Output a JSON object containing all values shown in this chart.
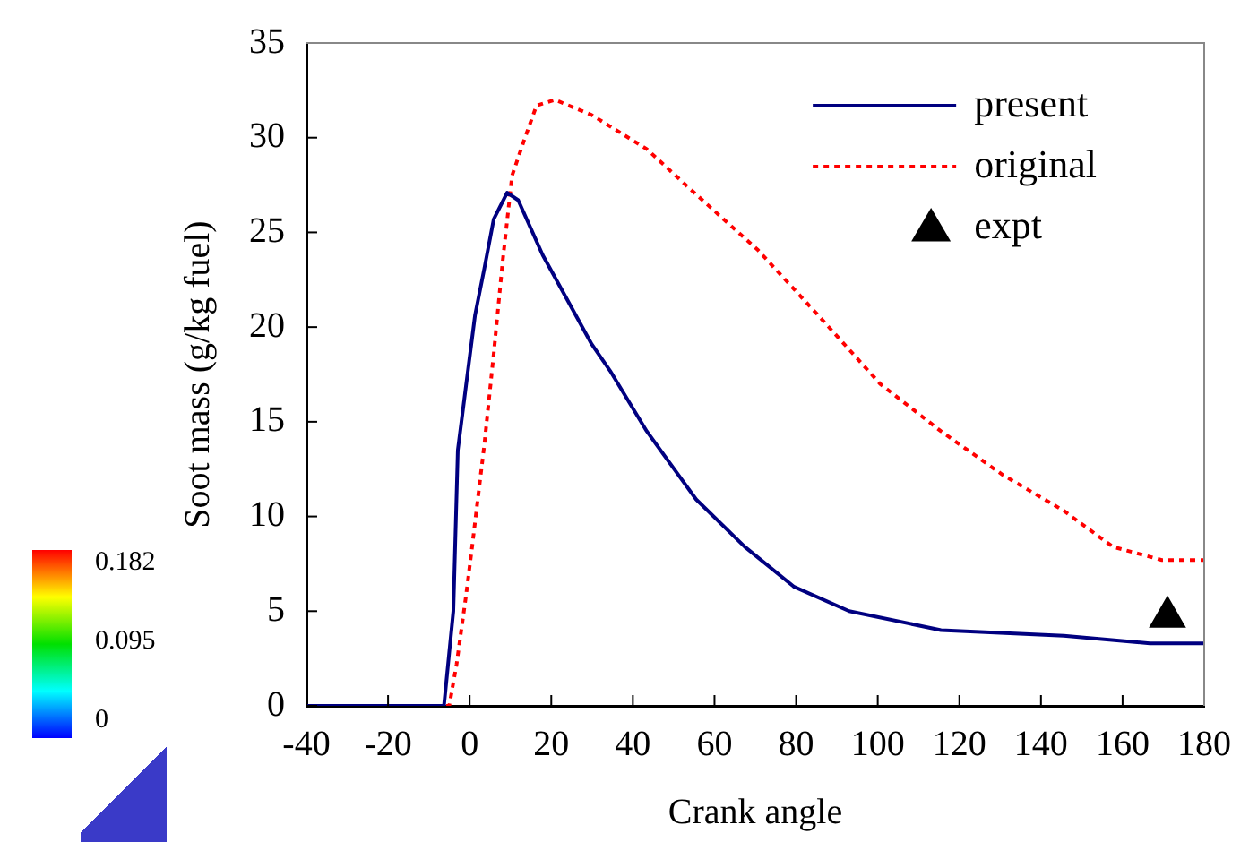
{
  "chart_data": {
    "type": "line",
    "xlabel": "Crank angle",
    "ylabel": "Soot mass (g/kg fuel)",
    "xlim": [
      -40,
      180
    ],
    "xticks": [
      -40,
      -20,
      0,
      20,
      40,
      60,
      80,
      100,
      120,
      140,
      160,
      180
    ],
    "ylim": [
      0,
      35
    ],
    "yticks": [
      0,
      5,
      10,
      15,
      20,
      25,
      30,
      35
    ],
    "grid": false,
    "legend": "top right",
    "marker": "none",
    "series": [
      {
        "name": "present",
        "color": "#000080",
        "line_style": "solid",
        "x": [
          -40,
          -6.3,
          -4,
          -2.9,
          -0.9,
          1.3,
          3.6,
          5.9,
          9.2,
          11.9,
          17.9,
          29.9,
          34.4,
          43.4,
          55.5,
          67.4,
          79.4,
          93,
          115.5,
          145.6,
          166.7,
          180
        ],
        "values": [
          0,
          0,
          5,
          13.5,
          16.9,
          20.6,
          23.1,
          25.7,
          27.1,
          26.7,
          23.8,
          19.1,
          17.7,
          14.5,
          10.9,
          8.4,
          6.3,
          5,
          4,
          3.7,
          3.3,
          3.3
        ]
      },
      {
        "name": "original",
        "color": "#ff0000",
        "line_style": "dotted",
        "x": [
          -40,
          -5,
          -3.2,
          -0.9,
          0.6,
          3.6,
          5.9,
          8.1,
          10.4,
          13.4,
          16.4,
          20.9,
          29.9,
          43.4,
          55.5,
          70.5,
          85.5,
          100.6,
          115.5,
          130.6,
          145.6,
          157.6,
          169.6,
          180
        ],
        "values": [
          0,
          0,
          2.2,
          5.8,
          8.4,
          13.8,
          18.6,
          23.5,
          28,
          29.9,
          31.7,
          32,
          31.2,
          29.4,
          27,
          24.1,
          20.6,
          17,
          14.5,
          12.2,
          10.3,
          8.4,
          7.7,
          7.7
        ]
      },
      {
        "name": "expt",
        "type": "scatter",
        "marker": "triangle",
        "color": "#000000",
        "x": [
          171
        ],
        "values": [
          4.7
        ]
      }
    ],
    "annotations": [
      "0.182",
      "0.095",
      "0"
    ]
  }
}
